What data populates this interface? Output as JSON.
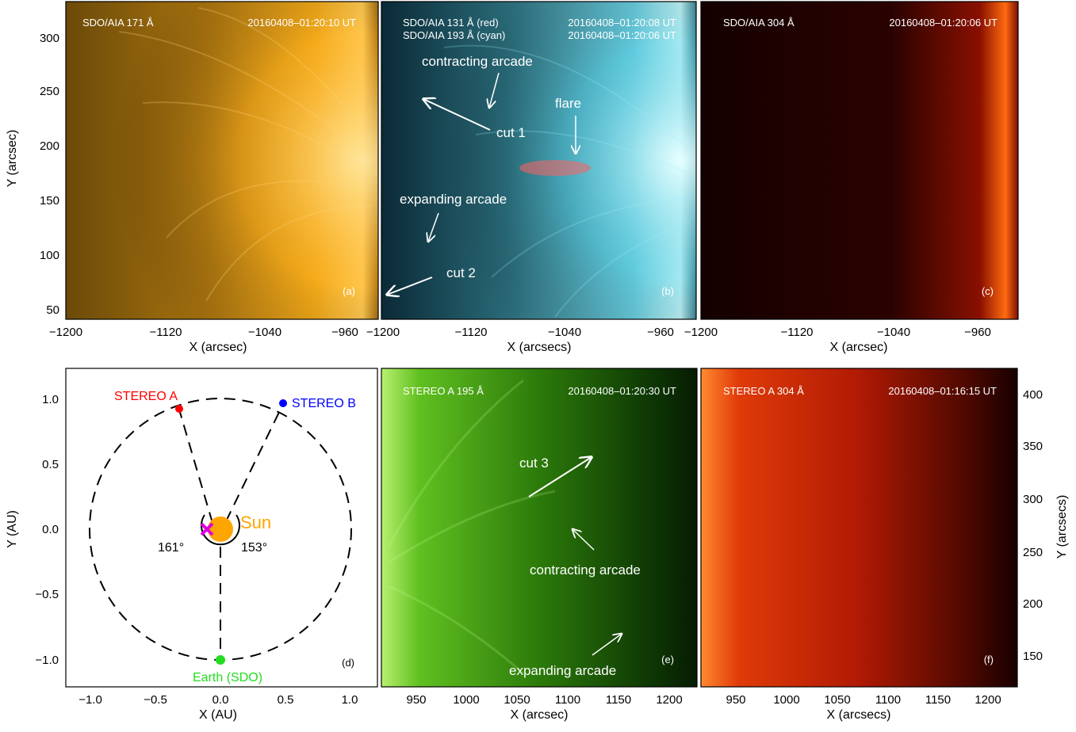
{
  "colors": {
    "stereo_a": "#ff0000",
    "stereo_b": "#0000ff",
    "sun": "#ffa500",
    "earth": "#22dd22",
    "marker": "#dd00dd"
  },
  "panel_a": {
    "instrument": "SDO/AIA 171 Å",
    "time": "20160408–01:20:10 UT",
    "label": "(a)",
    "ylabel": "Y (arcsec)",
    "xlabel": "X (arcsec)",
    "yticks": [
      "300",
      "250",
      "200",
      "150",
      "100",
      "50"
    ],
    "xticks": [
      "−1200",
      "−1120",
      "−1040",
      "−960"
    ]
  },
  "panel_b": {
    "instrument_1": "SDO/AIA 131 Å (red)",
    "time_1": "20160408–01:20:08 UT",
    "instrument_2": "SDO/AIA 193 Å (cyan)",
    "time_2": "20160408–01:20:06 UT",
    "label": "(b)",
    "xlabel": "X (arcsecs)",
    "xticks": [
      "−1200",
      "−1120",
      "−1040",
      "−960"
    ],
    "annotations": {
      "contracting": "contracting arcade",
      "flare": "flare",
      "cut1": "cut 1",
      "expanding": "expanding arcade",
      "cut2": "cut 2"
    }
  },
  "panel_c": {
    "instrument": "SDO/AIA 304 Å",
    "time": "20160408–01:20:06 UT",
    "label": "(c)",
    "xlabel": "X (arcsec)",
    "xticks": [
      "−1200",
      "−1120",
      "−1040",
      "−960"
    ]
  },
  "panel_d": {
    "label": "(d)",
    "xlabel": "X (AU)",
    "ylabel": "Y (AU)",
    "xticks": [
      "−1.0",
      "−0.5",
      "0.0",
      "0.5",
      "1.0"
    ],
    "yticks": [
      "1.0",
      "0.5",
      "0.0",
      "−0.5",
      "−1.0"
    ],
    "stereo_a_label": "STEREO A",
    "stereo_b_label": "STEREO B",
    "sun_label": "Sun",
    "earth_label": "Earth (SDO)",
    "angle_a": "161°",
    "angle_b": "153°"
  },
  "panel_e": {
    "instrument": "STEREO A 195 Å",
    "time": "20160408–01:20:30 UT",
    "label": "(e)",
    "xlabel": "X (arcsec)",
    "xticks": [
      "950",
      "1000",
      "1050",
      "1100",
      "1150",
      "1200"
    ],
    "annotations": {
      "cut3": "cut 3",
      "contracting": "contracting arcade",
      "expanding": "expanding arcade"
    }
  },
  "panel_f": {
    "instrument": "STEREO A 304 Å",
    "time": "20160408–01:16:15 UT",
    "label": "(f)",
    "xlabel": "X (arcsecs)",
    "ylabel": "Y (arcsecs)",
    "xticks": [
      "950",
      "1000",
      "1050",
      "1100",
      "1150",
      "1200"
    ],
    "yticks": [
      "400",
      "350",
      "300",
      "250",
      "200",
      "150"
    ]
  }
}
